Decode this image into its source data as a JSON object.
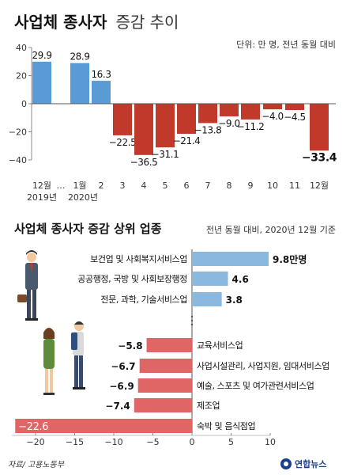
{
  "top_title": {
    "bold": "사업체 종사자",
    "light": "증감 추이"
  },
  "top_unit": "단위: 만 명, 전년 동월 대비",
  "bottom_title": "사업체 종사자 증감 상위 업종",
  "bottom_note": "전년 동월 대비, 2020년 12월 기준",
  "year_labels": [
    "2019년",
    "2020년"
  ],
  "ellipsis": "…",
  "source": "자료/ 고용노동부",
  "brand": "연합뉴스",
  "colors": {
    "positive": "#5b9bd5",
    "negative": "#c0392b",
    "positive_light": "#8ab8df",
    "negative_light": "#e06666"
  },
  "chart_data": [
    {
      "type": "bar",
      "title": "사업체 종사자 증감 추이",
      "unit": "만 명",
      "categories": [
        "12월",
        "1월",
        "2",
        "3",
        "4",
        "5",
        "6",
        "7",
        "8",
        "9",
        "10",
        "11",
        "12월"
      ],
      "values": [
        29.9,
        28.9,
        16.3,
        -22.5,
        -36.5,
        -31.1,
        -21.4,
        -13.8,
        -9.0,
        -11.2,
        -4.0,
        -4.5,
        -33.4
      ],
      "value_labels": [
        "29.9",
        "28.9",
        "16.3",
        "−22.5",
        "−36.5",
        "−31.1",
        "−21.4",
        "−13.8",
        "−9.0",
        "−11.2",
        "−4.0",
        "−4.5",
        "−33.4"
      ],
      "ylim": [
        -40,
        40
      ],
      "yticks": [
        40,
        20,
        0,
        -20,
        -40
      ],
      "grid": false
    },
    {
      "type": "bar",
      "orientation": "horizontal",
      "title": "사업체 종사자 증감 상위 업종",
      "categories": [
        "보건업 및 사회복지서비스업",
        "공공행정, 국방 및 사회보장행정",
        "전문, 과학, 기술서비스업",
        "교육서비스업",
        "사업시설관리, 사업지원, 임대서비스업",
        "예술, 스포츠 및 여가관련서비스업",
        "제조업",
        "숙박 및 음식점업"
      ],
      "values": [
        9.8,
        4.6,
        3.8,
        -5.8,
        -6.7,
        -6.9,
        -7.4,
        -22.6
      ],
      "value_labels": [
        "9.8만명",
        "4.6",
        "3.8",
        "−5.8",
        "−6.7",
        "−6.9",
        "−7.4",
        "−22.6"
      ],
      "xlim": [
        -23,
        10
      ],
      "xticks": [
        -20,
        -15,
        -10,
        -5,
        0,
        5,
        10
      ]
    }
  ]
}
